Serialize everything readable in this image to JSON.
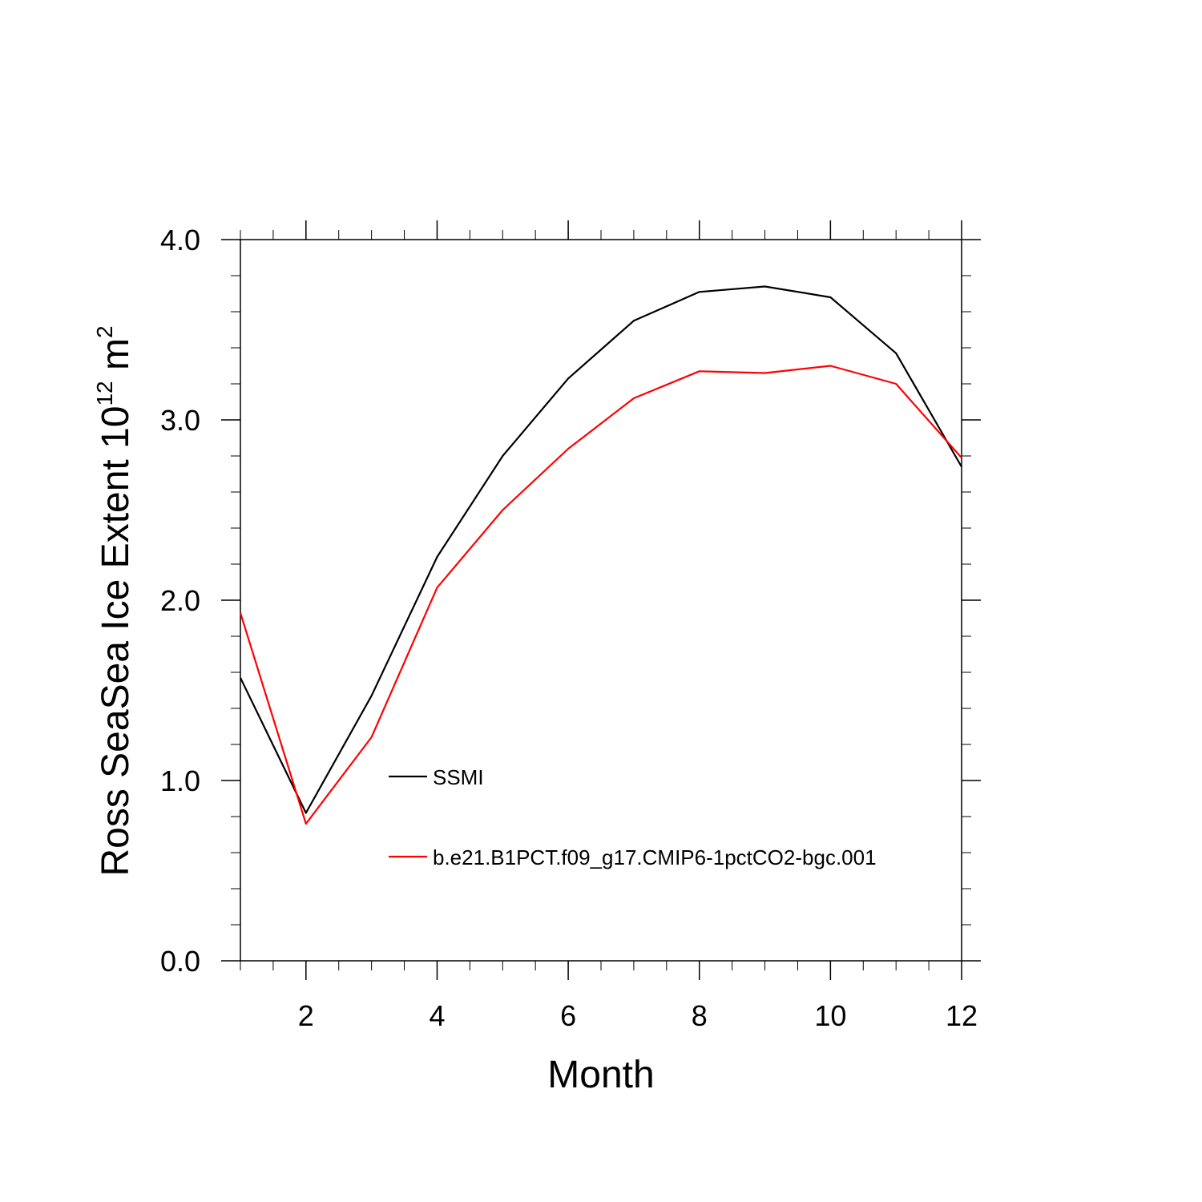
{
  "chart_data": {
    "type": "line",
    "xlabel": "Month",
    "ylabel_main": "Ross SeaSea Ice Extent 10",
    "ylabel_exp": "12",
    "ylabel_unit": " m",
    "ylabel_unit_exp": "2",
    "xlim": [
      1,
      12
    ],
    "ylim": [
      0.0,
      4.0
    ],
    "x_ticks": [
      2,
      4,
      6,
      8,
      10,
      12
    ],
    "x_tick_labels": [
      "2",
      "4",
      "6",
      "8",
      "10",
      "12"
    ],
    "y_ticks": [
      0.0,
      1.0,
      2.0,
      3.0,
      4.0
    ],
    "y_tick_labels": [
      "0.0",
      "1.0",
      "2.0",
      "3.0",
      "4.0"
    ],
    "x": [
      1,
      2,
      3,
      4,
      5,
      6,
      7,
      8,
      9,
      10,
      11,
      12
    ],
    "series": [
      {
        "name": "SSMI",
        "color": "#000000",
        "values": [
          1.57,
          0.82,
          1.47,
          2.24,
          2.8,
          3.23,
          3.55,
          3.71,
          3.74,
          3.68,
          3.37,
          2.74
        ]
      },
      {
        "name": "b.e21.B1PCT.f09_g17.CMIP6-1pctCO2-bgc.001",
        "color": "#ff0000",
        "values": [
          1.93,
          0.76,
          1.24,
          2.07,
          2.5,
          2.84,
          3.12,
          3.27,
          3.26,
          3.3,
          3.2,
          2.79
        ]
      }
    ],
    "legend": {
      "placement": "inside-lower-center"
    },
    "grid": false
  }
}
